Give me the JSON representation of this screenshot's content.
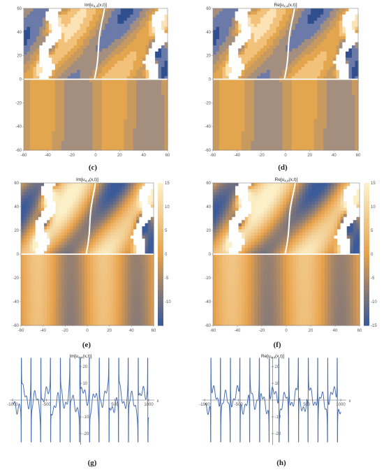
{
  "chart_data": [
    {
      "id": "c",
      "type": "heatmap",
      "style": "contour",
      "title": "Im[u4,4(x,t)]",
      "caption": "(c)",
      "x_ticks": [
        -60,
        -40,
        -20,
        0,
        20,
        40,
        60
      ],
      "y_ticks": [
        60,
        40,
        20,
        0,
        -20,
        -40,
        -60
      ],
      "xlim": [
        -60,
        60
      ],
      "ylim": [
        -60,
        60
      ],
      "colors": [
        "#2f4f8f",
        "#6b7aa8",
        "#a48f7f",
        "#c99a5f",
        "#e3a64e",
        "#f2c17a",
        "#fbe3b6"
      ]
    },
    {
      "id": "d",
      "type": "heatmap",
      "style": "contour",
      "title": "Re[u4,4(x,t)]",
      "caption": "(d)",
      "x_ticks": [
        -60,
        -40,
        -20,
        0,
        20,
        40,
        60
      ],
      "y_ticks": [
        60,
        40,
        20,
        0,
        -20,
        -40,
        -60
      ],
      "xlim": [
        -60,
        60
      ],
      "ylim": [
        -60,
        60
      ],
      "colors": [
        "#2f4f8f",
        "#6b7aa8",
        "#a48f7f",
        "#c99a5f",
        "#e3a64e",
        "#f2c17a",
        "#fbe3b6"
      ]
    },
    {
      "id": "e",
      "type": "heatmap",
      "style": "density",
      "title": "Im[u4,4(x,t)]",
      "caption": "(e)",
      "x_ticks": [
        -60,
        -40,
        -20,
        0,
        20,
        40,
        60
      ],
      "y_ticks": [
        60,
        40,
        20,
        0,
        -20,
        -40,
        -60
      ],
      "xlim": [
        -60,
        60
      ],
      "ylim": [
        -60,
        60
      ],
      "colorbar_ticks": [
        15,
        10,
        5,
        0,
        -5,
        -10
      ],
      "colorbar_range": [
        -15,
        15
      ],
      "colors": [
        "#3a5a9a",
        "#e8a14a",
        "#fbf0c8"
      ]
    },
    {
      "id": "f",
      "type": "heatmap",
      "style": "density",
      "title": "Re[u4,4(x,t)]",
      "caption": "(f)",
      "x_ticks": [
        -60,
        -40,
        -20,
        0,
        20,
        40,
        60
      ],
      "y_ticks": [
        60,
        40,
        20,
        0,
        -20,
        -40,
        -60
      ],
      "xlim": [
        -60,
        60
      ],
      "ylim": [
        -60,
        60
      ],
      "colorbar_ticks": [
        15,
        10,
        5,
        0,
        -5,
        -10,
        -15
      ],
      "colorbar_range": [
        -15,
        15
      ],
      "colors": [
        "#3a5a9a",
        "#e8a14a",
        "#fbf0c8"
      ]
    },
    {
      "id": "g",
      "type": "line",
      "title": "Im[u4,4(x,t)]",
      "caption": "(g)",
      "xlabel": "x",
      "x_ticks": [
        "-1000",
        "-500",
        "500",
        "1000"
      ],
      "y_ticks": [
        "20",
        "10",
        "-10",
        "-20"
      ],
      "xlim": [
        -1000,
        1000
      ],
      "ylim": [
        -25,
        25
      ],
      "line_color": "#4a6fb0"
    },
    {
      "id": "h",
      "type": "line",
      "title": "Re[u4,4(x,t)]",
      "caption": "(h)",
      "xlabel": "x",
      "x_ticks": [
        "-1000",
        "-500",
        "500",
        "1000"
      ],
      "y_ticks": [
        "20",
        "10",
        "-10",
        "-20"
      ],
      "xlim": [
        -1000,
        1000
      ],
      "ylim": [
        -25,
        25
      ],
      "line_color": "#4a6fb0"
    }
  ]
}
